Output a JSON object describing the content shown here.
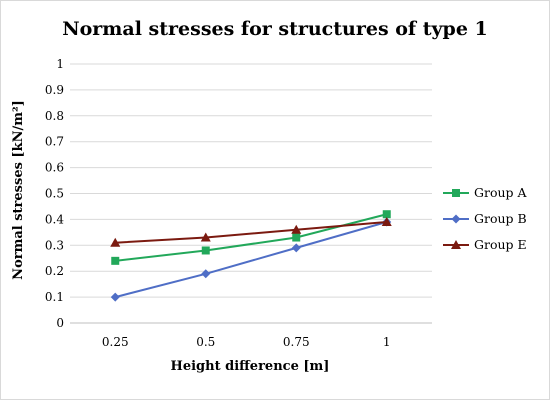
{
  "chart_data": {
    "type": "line",
    "title": "Normal stresses  for structures of type 1",
    "xlabel": "Height difference [m]",
    "ylabel": "Normal stresses [kN/m²]",
    "categories": [
      "0.25",
      "0.5",
      "0.75",
      "1"
    ],
    "ylim": [
      0,
      1
    ],
    "yticks": [
      "0",
      "0.1",
      "0.2",
      "0.3",
      "0.4",
      "0.5",
      "0.6",
      "0.7",
      "0.8",
      "0.9",
      "1"
    ],
    "grid": true,
    "legend_position": "right",
    "series": [
      {
        "name": "Group A",
        "values": [
          0.24,
          0.28,
          0.33,
          0.42
        ],
        "color": "#22a85a",
        "marker": "square"
      },
      {
        "name": "Group B",
        "values": [
          0.1,
          0.19,
          0.29,
          0.39
        ],
        "color": "#4f6ec6",
        "marker": "diamond"
      },
      {
        "name": "Group E",
        "values": [
          0.31,
          0.33,
          0.36,
          0.39
        ],
        "color": "#7b1a10",
        "marker": "triangle"
      }
    ]
  }
}
